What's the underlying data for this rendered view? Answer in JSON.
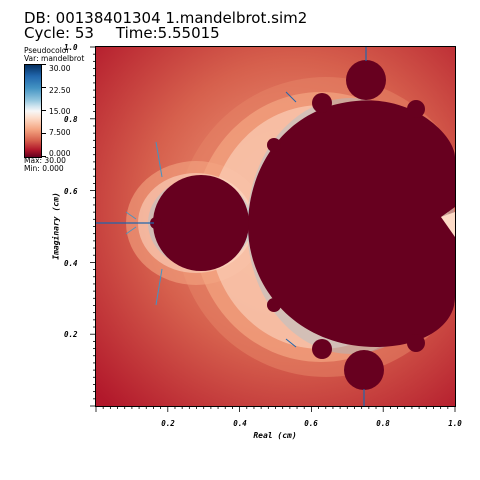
{
  "header": {
    "db": "DB: 00138401304 1.mandelbrot.sim2",
    "cycle": "Cycle: 53",
    "time": "Time:5.55015"
  },
  "legend": {
    "title": "Pseudocolor",
    "var": "Var: mandelbrot",
    "ticks": [
      "30.00",
      "22.50",
      "15.00",
      "7.500",
      "0.000"
    ],
    "max": "Max: 30.00",
    "min": "Min: 0.000",
    "colors": [
      "#053061",
      "#2166ac",
      "#4393c3",
      "#92c5de",
      "#f7f7f7",
      "#f4a582",
      "#d6604d",
      "#b2182b",
      "#67001f"
    ]
  },
  "axes": {
    "x_title": "Real (cm)",
    "y_title": "Imaginary (cm)",
    "x_ticks": [
      "0.2",
      "0.4",
      "0.6",
      "0.8",
      "1.0"
    ],
    "y_ticks": [
      "0.2",
      "0.4",
      "0.6",
      "0.8",
      "1.0"
    ],
    "x_range": [
      0.0,
      1.0
    ],
    "y_range": [
      0.0,
      1.0
    ]
  }
}
